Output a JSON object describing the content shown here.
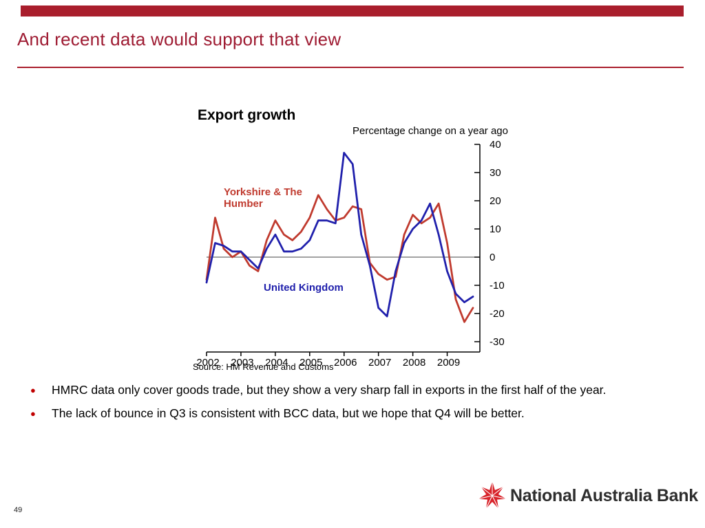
{
  "colors": {
    "brand_red": "#A91E2C",
    "title_red": "#9E1B32",
    "bullet_red": "#C00000",
    "logo_red": "#D8232A",
    "chart_red": "#C03A2E",
    "chart_blue": "#2020AC"
  },
  "header": {
    "title": "And recent data would support that view"
  },
  "chart_data": {
    "type": "line",
    "title": "Export growth",
    "subtitle": "Percentage change on a year ago",
    "source": "Source: HM Revenue and Customs",
    "x_unit": "quarterly",
    "x_tick_labels": [
      "2002",
      "2003",
      "2004",
      "2005",
      "2006",
      "2007",
      "2008",
      "2009"
    ],
    "points_per_year": 4,
    "y_ticks": [
      40,
      30,
      20,
      10,
      0,
      -10,
      -20,
      -30
    ],
    "ylim": [
      -30,
      40
    ],
    "grid": false,
    "legend": "inline-labels",
    "series": [
      {
        "name": "Yorkshire & The Humber",
        "color": "#C03A2E",
        "values": [
          -8,
          14,
          3,
          0,
          2,
          -3,
          -5,
          6,
          13,
          8,
          6,
          9,
          14,
          22,
          17,
          13,
          14,
          18,
          17,
          -2,
          -6,
          -8,
          -7,
          8,
          15,
          12,
          14,
          19,
          5,
          -15,
          -23,
          -18
        ]
      },
      {
        "name": "United Kingdom",
        "color": "#2020AC",
        "values": [
          -9,
          5,
          4,
          2,
          2,
          -1,
          -4,
          3,
          8,
          2,
          2,
          3,
          6,
          13,
          13,
          12,
          37,
          33,
          8,
          -3,
          -18,
          -21,
          -5,
          5,
          10,
          13,
          19,
          8,
          -5,
          -13,
          -16,
          -14
        ]
      }
    ]
  },
  "bullets": [
    {
      "marker": "●",
      "text": "HMRC data only cover goods trade, but they show a very sharp fall in exports in the first half of the year."
    },
    {
      "marker": "●",
      "text": "The lack of bounce in Q3 is consistent with BCC data, but we hope that Q4 will be better."
    }
  ],
  "footer": {
    "page_number": "49",
    "logo_text": "National Australia Bank"
  }
}
